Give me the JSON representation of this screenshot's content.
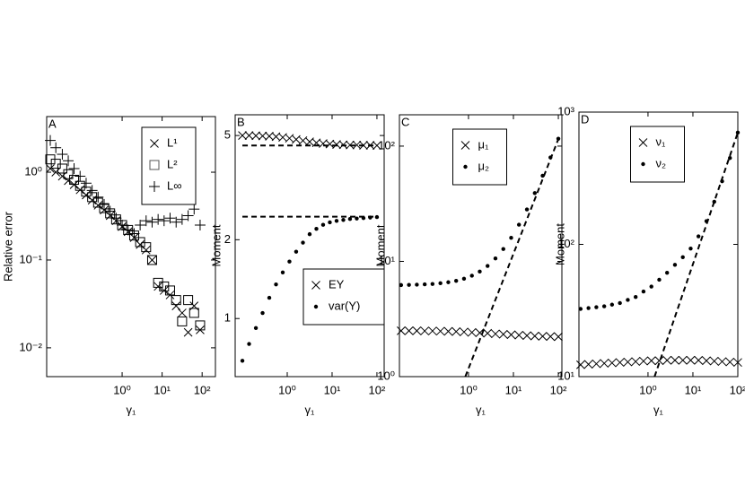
{
  "chart_data": [
    {
      "type": "scatter",
      "label": "A",
      "ylabel": "Relative error",
      "xlabel": "γ₁",
      "xscale": "log",
      "yscale": "log",
      "xlim": [
        0.013,
        215
      ],
      "ylim": [
        0.0047,
        4.3
      ],
      "xticks": [
        {
          "value": 1,
          "label": "10⁰"
        },
        {
          "value": 10,
          "label": "10¹"
        },
        {
          "value": 100,
          "label": "10²"
        }
      ],
      "yticks": [
        {
          "value": 0.01,
          "label": "10⁻²"
        },
        {
          "value": 0.1,
          "label": "10⁻¹"
        },
        {
          "value": 1,
          "label": "10⁰"
        }
      ],
      "legend": "upper right",
      "x": [
        0.016,
        0.022,
        0.032,
        0.045,
        0.063,
        0.089,
        0.126,
        0.178,
        0.251,
        0.355,
        0.501,
        0.708,
        1,
        1.41,
        2.0,
        2.82,
        3.98,
        5.62,
        7.94,
        11.2,
        15.8,
        22.4,
        31.6,
        44.7,
        63.1,
        89.1
      ],
      "series": [
        {
          "name": "L¹",
          "marker": "x",
          "color": "#000000",
          "values": [
            1.1,
            1.0,
            0.9,
            0.8,
            0.72,
            0.63,
            0.55,
            0.48,
            0.42,
            0.37,
            0.32,
            0.28,
            0.24,
            0.21,
            0.18,
            0.15,
            0.13,
            0.1,
            0.05,
            0.045,
            0.04,
            0.03,
            0.025,
            0.015,
            0.03,
            0.016
          ]
        },
        {
          "name": "L²",
          "marker": "square",
          "color": "#000000",
          "values": [
            1.4,
            1.25,
            1.1,
            0.95,
            0.82,
            0.7,
            0.6,
            0.52,
            0.45,
            0.39,
            0.34,
            0.29,
            0.25,
            0.22,
            0.19,
            0.16,
            0.14,
            0.1,
            0.055,
            0.05,
            0.045,
            0.035,
            0.02,
            0.035,
            0.025,
            0.018
          ]
        },
        {
          "name": "L∞",
          "marker": "plus",
          "color": "#000000",
          "values": [
            2.3,
            1.9,
            1.6,
            1.35,
            1.1,
            0.9,
            0.75,
            0.62,
            0.52,
            0.43,
            0.36,
            0.3,
            0.25,
            0.22,
            0.2,
            0.25,
            0.28,
            0.27,
            0.29,
            0.28,
            0.3,
            0.27,
            0.29,
            0.32,
            0.38,
            0.25
          ]
        }
      ]
    },
    {
      "type": "scatter",
      "label": "B",
      "ylabel": "Moment",
      "xlabel": "γ₁",
      "xscale": "log",
      "yscale": "log",
      "xlim": [
        0.069,
        145
      ],
      "ylim": [
        0.6,
        6
      ],
      "xticks": [
        {
          "value": 1,
          "label": "10⁰"
        },
        {
          "value": 10,
          "label": "10¹"
        },
        {
          "value": 100,
          "label": "10²"
        }
      ],
      "yticks": [
        1,
        2,
        5
      ],
      "legend": "lower right",
      "x": [
        0.1,
        0.141,
        0.2,
        0.282,
        0.398,
        0.562,
        0.794,
        1.12,
        1.58,
        2.24,
        3.16,
        4.47,
        6.31,
        8.91,
        12.6,
        17.8,
        25.1,
        35.5,
        50.1,
        70.8,
        100
      ],
      "series": [
        {
          "name": "EY",
          "marker": "x",
          "color": "#000000",
          "values": [
            5.0,
            5.0,
            4.99,
            4.98,
            4.97,
            4.95,
            4.92,
            4.88,
            4.83,
            4.78,
            4.73,
            4.69,
            4.66,
            4.64,
            4.62,
            4.61,
            4.6,
            4.6,
            4.59,
            4.59,
            4.58
          ]
        },
        {
          "name": "var(Y)",
          "marker": "dot",
          "color": "#000000",
          "values": [
            0.69,
            0.8,
            0.92,
            1.05,
            1.2,
            1.35,
            1.5,
            1.65,
            1.8,
            1.95,
            2.1,
            2.2,
            2.28,
            2.33,
            2.36,
            2.38,
            2.4,
            2.41,
            2.42,
            2.43,
            2.44
          ]
        }
      ],
      "reference_lines": [
        {
          "x": [
            0.1,
            100
          ],
          "y": [
            4.58,
            4.58
          ]
        },
        {
          "x": [
            0.1,
            100
          ],
          "y": [
            2.45,
            2.45
          ]
        }
      ]
    },
    {
      "type": "scatter",
      "label": "C",
      "ylabel": "Moment",
      "xlabel": "γ₁",
      "xscale": "log",
      "yscale": "log",
      "xlim": [
        0.029,
        120
      ],
      "ylim": [
        1,
        187
      ],
      "xticks": [
        {
          "value": 1,
          "label": "10⁰"
        },
        {
          "value": 10,
          "label": "10¹"
        },
        {
          "value": 100,
          "label": "10²"
        }
      ],
      "yticks": [
        {
          "value": 1,
          "label": "10⁰"
        },
        {
          "value": 10,
          "label": "10¹"
        },
        {
          "value": 100,
          "label": "10²"
        }
      ],
      "legend": "upper center",
      "x": [
        0.0316,
        0.0473,
        0.0708,
        0.106,
        0.158,
        0.237,
        0.355,
        0.531,
        0.794,
        1.19,
        1.78,
        2.66,
        3.98,
        5.96,
        8.91,
        13.3,
        20,
        29.9,
        44.7,
        66.8,
        100
      ],
      "series": [
        {
          "name": "μ₁",
          "marker": "x",
          "color": "#000000",
          "values": [
            2.5,
            2.5,
            2.5,
            2.49,
            2.49,
            2.48,
            2.47,
            2.46,
            2.44,
            2.42,
            2.4,
            2.38,
            2.35,
            2.33,
            2.31,
            2.29,
            2.27,
            2.25,
            2.24,
            2.23,
            2.22
          ]
        },
        {
          "name": "μ₂",
          "marker": "dot",
          "color": "#000000",
          "values": [
            6.23,
            6.25,
            6.28,
            6.32,
            6.37,
            6.46,
            6.59,
            6.78,
            7.07,
            7.51,
            8.16,
            9.13,
            10.6,
            12.8,
            16.0,
            20.8,
            28.2,
            39.1,
            55.4,
            79.7,
            116
          ]
        }
      ],
      "reference_lines": [
        {
          "x": [
            0.85,
            100
          ],
          "y": [
            1,
            115
          ]
        }
      ]
    },
    {
      "type": "scatter",
      "label": "D",
      "ylabel": "Moment",
      "xlabel": "γ₁",
      "xscale": "log",
      "yscale": "log",
      "xlim": [
        0.029,
        100
      ],
      "ylim": [
        10,
        1000
      ],
      "xticks": [
        {
          "value": 1,
          "label": "10⁰"
        },
        {
          "value": 10,
          "label": "10¹"
        },
        {
          "value": 100,
          "label": "10²"
        }
      ],
      "yticks": [
        {
          "value": 10,
          "label": "10¹"
        },
        {
          "value": 100,
          "label": "10²"
        },
        {
          "value": 1000,
          "label": "10³"
        }
      ],
      "legend": "upper center",
      "x": [
        0.0316,
        0.0473,
        0.0708,
        0.106,
        0.158,
        0.237,
        0.355,
        0.531,
        0.794,
        1.19,
        1.78,
        2.66,
        3.98,
        5.96,
        8.91,
        13.3,
        20,
        29.9,
        44.7,
        66.8,
        100
      ],
      "series": [
        {
          "name": "ν₁",
          "marker": "x",
          "color": "#000000",
          "values": [
            12.3,
            12.4,
            12.5,
            12.6,
            12.7,
            12.8,
            12.9,
            13,
            13.1,
            13.2,
            13.2,
            13.3,
            13.3,
            13.3,
            13.3,
            13.3,
            13.2,
            13.1,
            13,
            12.9,
            12.8
          ]
        },
        {
          "name": "ν₂",
          "marker": "dot",
          "color": "#000000",
          "values": [
            32.5,
            33,
            33.5,
            34,
            35,
            36,
            38,
            40,
            44,
            48,
            54,
            61,
            70,
            80,
            93,
            115,
            150,
            210,
            300,
            450,
            700
          ]
        }
      ],
      "reference_lines": [
        {
          "x": [
            1.4,
            100
          ],
          "y": [
            10,
            700
          ]
        }
      ]
    }
  ]
}
